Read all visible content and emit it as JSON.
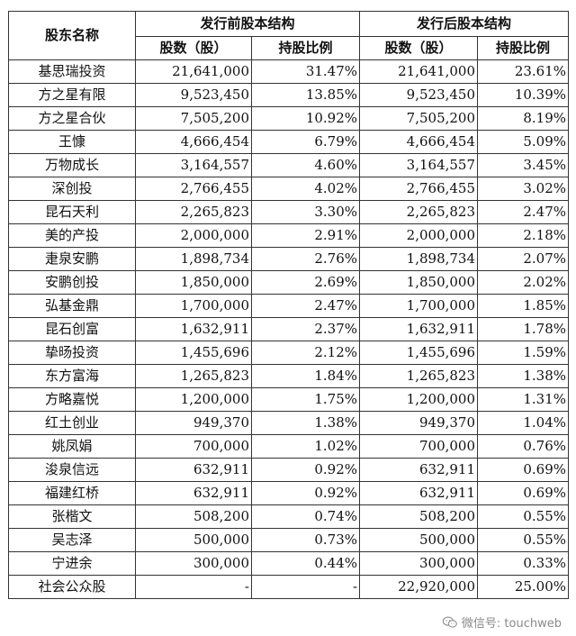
{
  "header": {
    "col_name": "股东名称",
    "group_before": "发行前股本结构",
    "group_after": "发行后股本结构",
    "shares": "股数（股）",
    "ratio": "持股比例"
  },
  "rows": [
    {
      "name": "基思瑞投资",
      "before_shares": "21,641,000",
      "before_ratio": "31.47%",
      "after_shares": "21,641,000",
      "after_ratio": "23.61%"
    },
    {
      "name": "方之星有限",
      "before_shares": "9,523,450",
      "before_ratio": "13.85%",
      "after_shares": "9,523,450",
      "after_ratio": "10.39%"
    },
    {
      "name": "方之星合伙",
      "before_shares": "7,505,200",
      "before_ratio": "10.92%",
      "after_shares": "7,505,200",
      "after_ratio": "8.19%"
    },
    {
      "name": "王慷",
      "before_shares": "4,666,454",
      "before_ratio": "6.79%",
      "after_shares": "4,666,454",
      "after_ratio": "5.09%"
    },
    {
      "name": "万物成长",
      "before_shares": "3,164,557",
      "before_ratio": "4.60%",
      "after_shares": "3,164,557",
      "after_ratio": "3.45%"
    },
    {
      "name": "深创投",
      "before_shares": "2,766,455",
      "before_ratio": "4.02%",
      "after_shares": "2,766,455",
      "after_ratio": "3.02%"
    },
    {
      "name": "昆石天利",
      "before_shares": "2,265,823",
      "before_ratio": "3.30%",
      "after_shares": "2,265,823",
      "after_ratio": "2.47%"
    },
    {
      "name": "美的产投",
      "before_shares": "2,000,000",
      "before_ratio": "2.91%",
      "after_shares": "2,000,000",
      "after_ratio": "2.18%"
    },
    {
      "name": "疌泉安鹏",
      "before_shares": "1,898,734",
      "before_ratio": "2.76%",
      "after_shares": "1,898,734",
      "after_ratio": "2.07%"
    },
    {
      "name": "安鹏创投",
      "before_shares": "1,850,000",
      "before_ratio": "2.69%",
      "after_shares": "1,850,000",
      "after_ratio": "2.02%"
    },
    {
      "name": "弘基金鼎",
      "before_shares": "1,700,000",
      "before_ratio": "2.47%",
      "after_shares": "1,700,000",
      "after_ratio": "1.85%"
    },
    {
      "name": "昆石创富",
      "before_shares": "1,632,911",
      "before_ratio": "2.37%",
      "after_shares": "1,632,911",
      "after_ratio": "1.78%"
    },
    {
      "name": "挚旸投资",
      "before_shares": "1,455,696",
      "before_ratio": "2.12%",
      "after_shares": "1,455,696",
      "after_ratio": "1.59%"
    },
    {
      "name": "东方富海",
      "before_shares": "1,265,823",
      "before_ratio": "1.84%",
      "after_shares": "1,265,823",
      "after_ratio": "1.38%"
    },
    {
      "name": "方略嘉悦",
      "before_shares": "1,200,000",
      "before_ratio": "1.75%",
      "after_shares": "1,200,000",
      "after_ratio": "1.31%"
    },
    {
      "name": "红土创业",
      "before_shares": "949,370",
      "before_ratio": "1.38%",
      "after_shares": "949,370",
      "after_ratio": "1.04%"
    },
    {
      "name": "姚凤娟",
      "before_shares": "700,000",
      "before_ratio": "1.02%",
      "after_shares": "700,000",
      "after_ratio": "0.76%"
    },
    {
      "name": "浚泉信远",
      "before_shares": "632,911",
      "before_ratio": "0.92%",
      "after_shares": "632,911",
      "after_ratio": "0.69%"
    },
    {
      "name": "福建红桥",
      "before_shares": "632,911",
      "before_ratio": "0.92%",
      "after_shares": "632,911",
      "after_ratio": "0.69%"
    },
    {
      "name": "张楷文",
      "before_shares": "508,200",
      "before_ratio": "0.74%",
      "after_shares": "508,200",
      "after_ratio": "0.55%"
    },
    {
      "name": "吴志泽",
      "before_shares": "500,000",
      "before_ratio": "0.73%",
      "after_shares": "500,000",
      "after_ratio": "0.55%"
    },
    {
      "name": "宁进余",
      "before_shares": "300,000",
      "before_ratio": "0.44%",
      "after_shares": "300,000",
      "after_ratio": "0.33%"
    },
    {
      "name": "社会公众股",
      "before_shares": "-",
      "before_ratio": "-",
      "after_shares": "22,920,000",
      "after_ratio": "25.00%"
    }
  ],
  "watermark": {
    "text": "微信号: touchweb",
    "icon": "wechat-icon"
  }
}
